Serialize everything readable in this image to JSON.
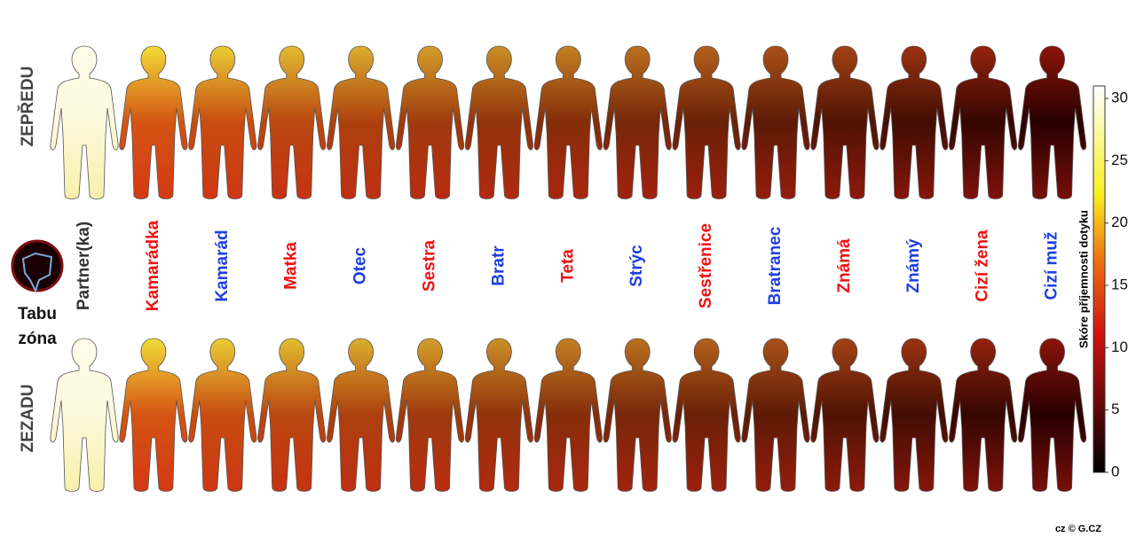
{
  "rows": {
    "front": "ZEPŘEDU",
    "back": "ZEZADU"
  },
  "people": [
    {
      "name": "Partner(ka)",
      "color": "#333333"
    },
    {
      "name": "Kamarádka",
      "color": "#ee1111"
    },
    {
      "name": "Kamarád",
      "color": "#1f3fe0"
    },
    {
      "name": "Matka",
      "color": "#ee1111"
    },
    {
      "name": "Otec",
      "color": "#1f3fe0"
    },
    {
      "name": "Sestra",
      "color": "#ee1111"
    },
    {
      "name": "Bratr",
      "color": "#1f3fe0"
    },
    {
      "name": "Teta",
      "color": "#ee1111"
    },
    {
      "name": "Strýc",
      "color": "#1f3fe0"
    },
    {
      "name": "Sestřenice",
      "color": "#ee1111"
    },
    {
      "name": "Bratranec",
      "color": "#1f3fe0"
    },
    {
      "name": "Známá",
      "color": "#ee1111"
    },
    {
      "name": "Známý",
      "color": "#1f3fe0"
    },
    {
      "name": "Cizí žena",
      "color": "#ee1111"
    },
    {
      "name": "Cizí muž",
      "color": "#1f3fe0"
    }
  ],
  "taboo": {
    "line1": "Tabu",
    "line2": "zóna"
  },
  "colorbar": {
    "label": "Skóre příjemnosti dotyku",
    "lim": [
      0,
      31
    ],
    "ticks": [
      0,
      5,
      10,
      15,
      20,
      25,
      30
    ]
  },
  "credit": "cz © G.CZ"
}
